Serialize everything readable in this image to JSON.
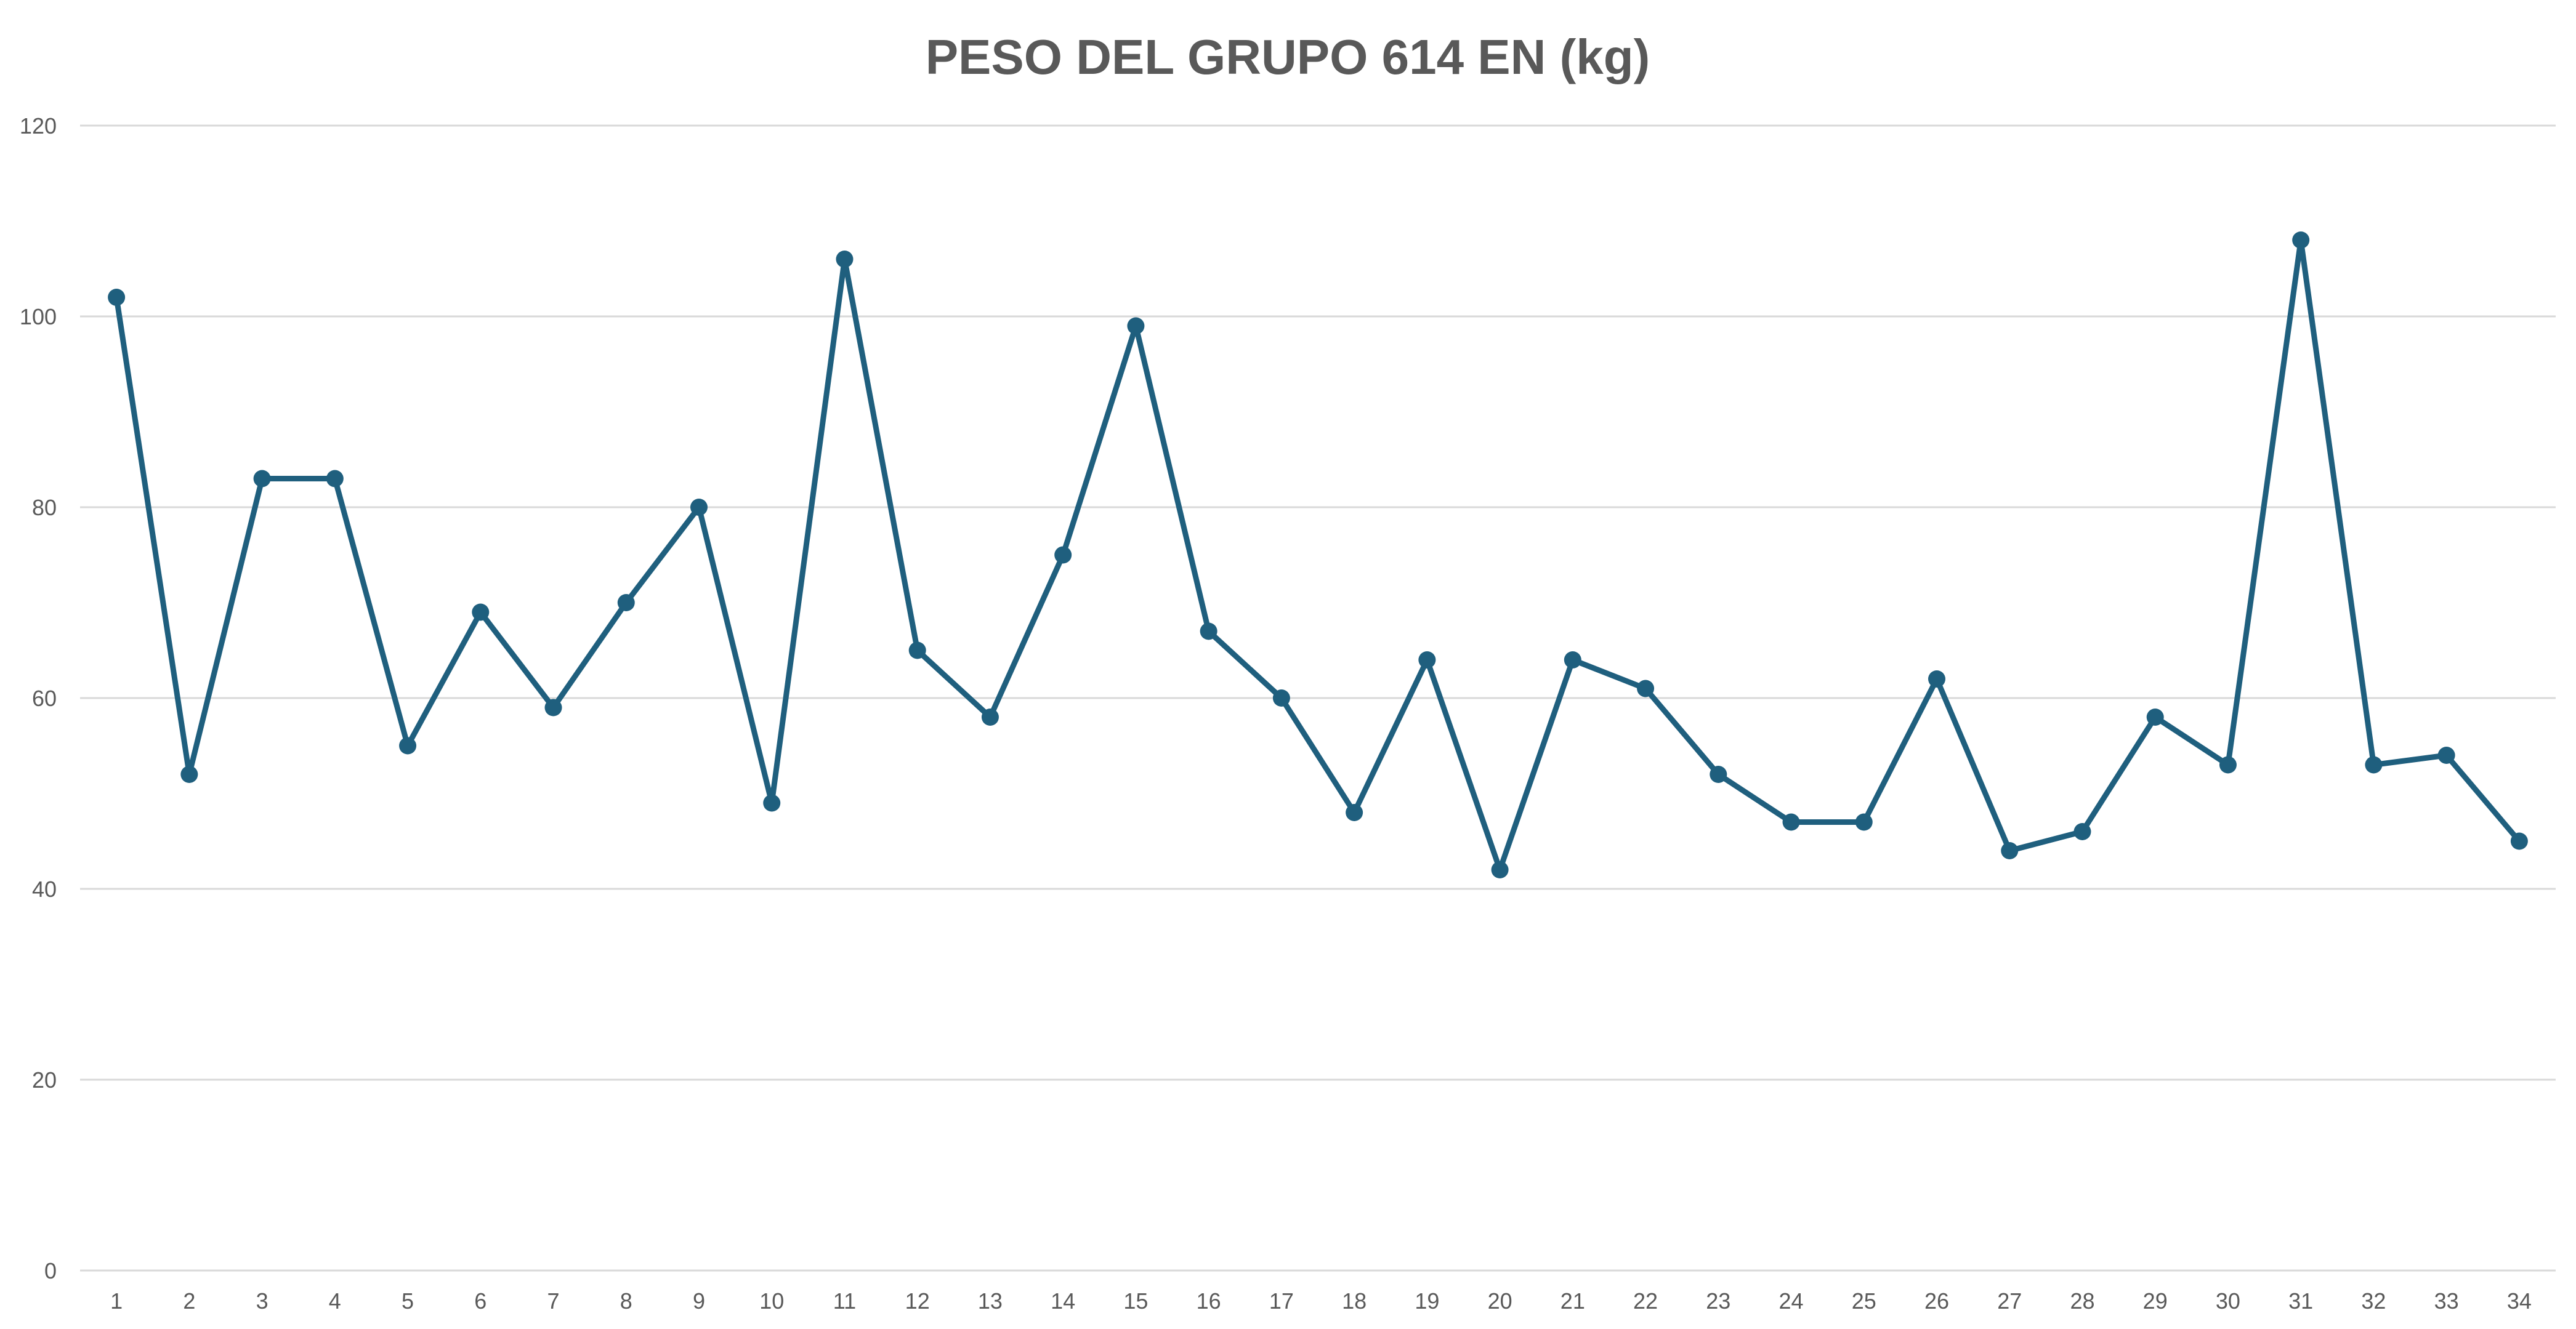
{
  "chart_data": {
    "type": "line",
    "title": "PESO DEL GRUPO 614 EN (kg)",
    "xlabel": "",
    "ylabel": "",
    "ylim": [
      0,
      120
    ],
    "yticks": [
      "0",
      "20",
      "40",
      "60",
      "80",
      "100",
      "120"
    ],
    "grid": true,
    "legend": "none",
    "categories": [
      "1",
      "2",
      "3",
      "4",
      "5",
      "6",
      "7",
      "8",
      "9",
      "10",
      "11",
      "12",
      "13",
      "14",
      "15",
      "16",
      "17",
      "18",
      "19",
      "20",
      "21",
      "22",
      "23",
      "24",
      "25",
      "26",
      "27",
      "28",
      "29",
      "30",
      "31",
      "32",
      "33",
      "34"
    ],
    "series": [
      {
        "values": [
          102,
          52,
          83,
          83,
          55,
          69,
          59,
          70,
          80,
          49,
          106,
          65,
          58,
          75,
          99,
          67,
          60,
          48,
          64,
          42,
          64,
          61,
          52,
          47,
          47,
          62,
          44,
          46,
          58,
          53,
          108,
          53,
          54,
          45
        ],
        "color": "#1f5f7e"
      }
    ]
  }
}
